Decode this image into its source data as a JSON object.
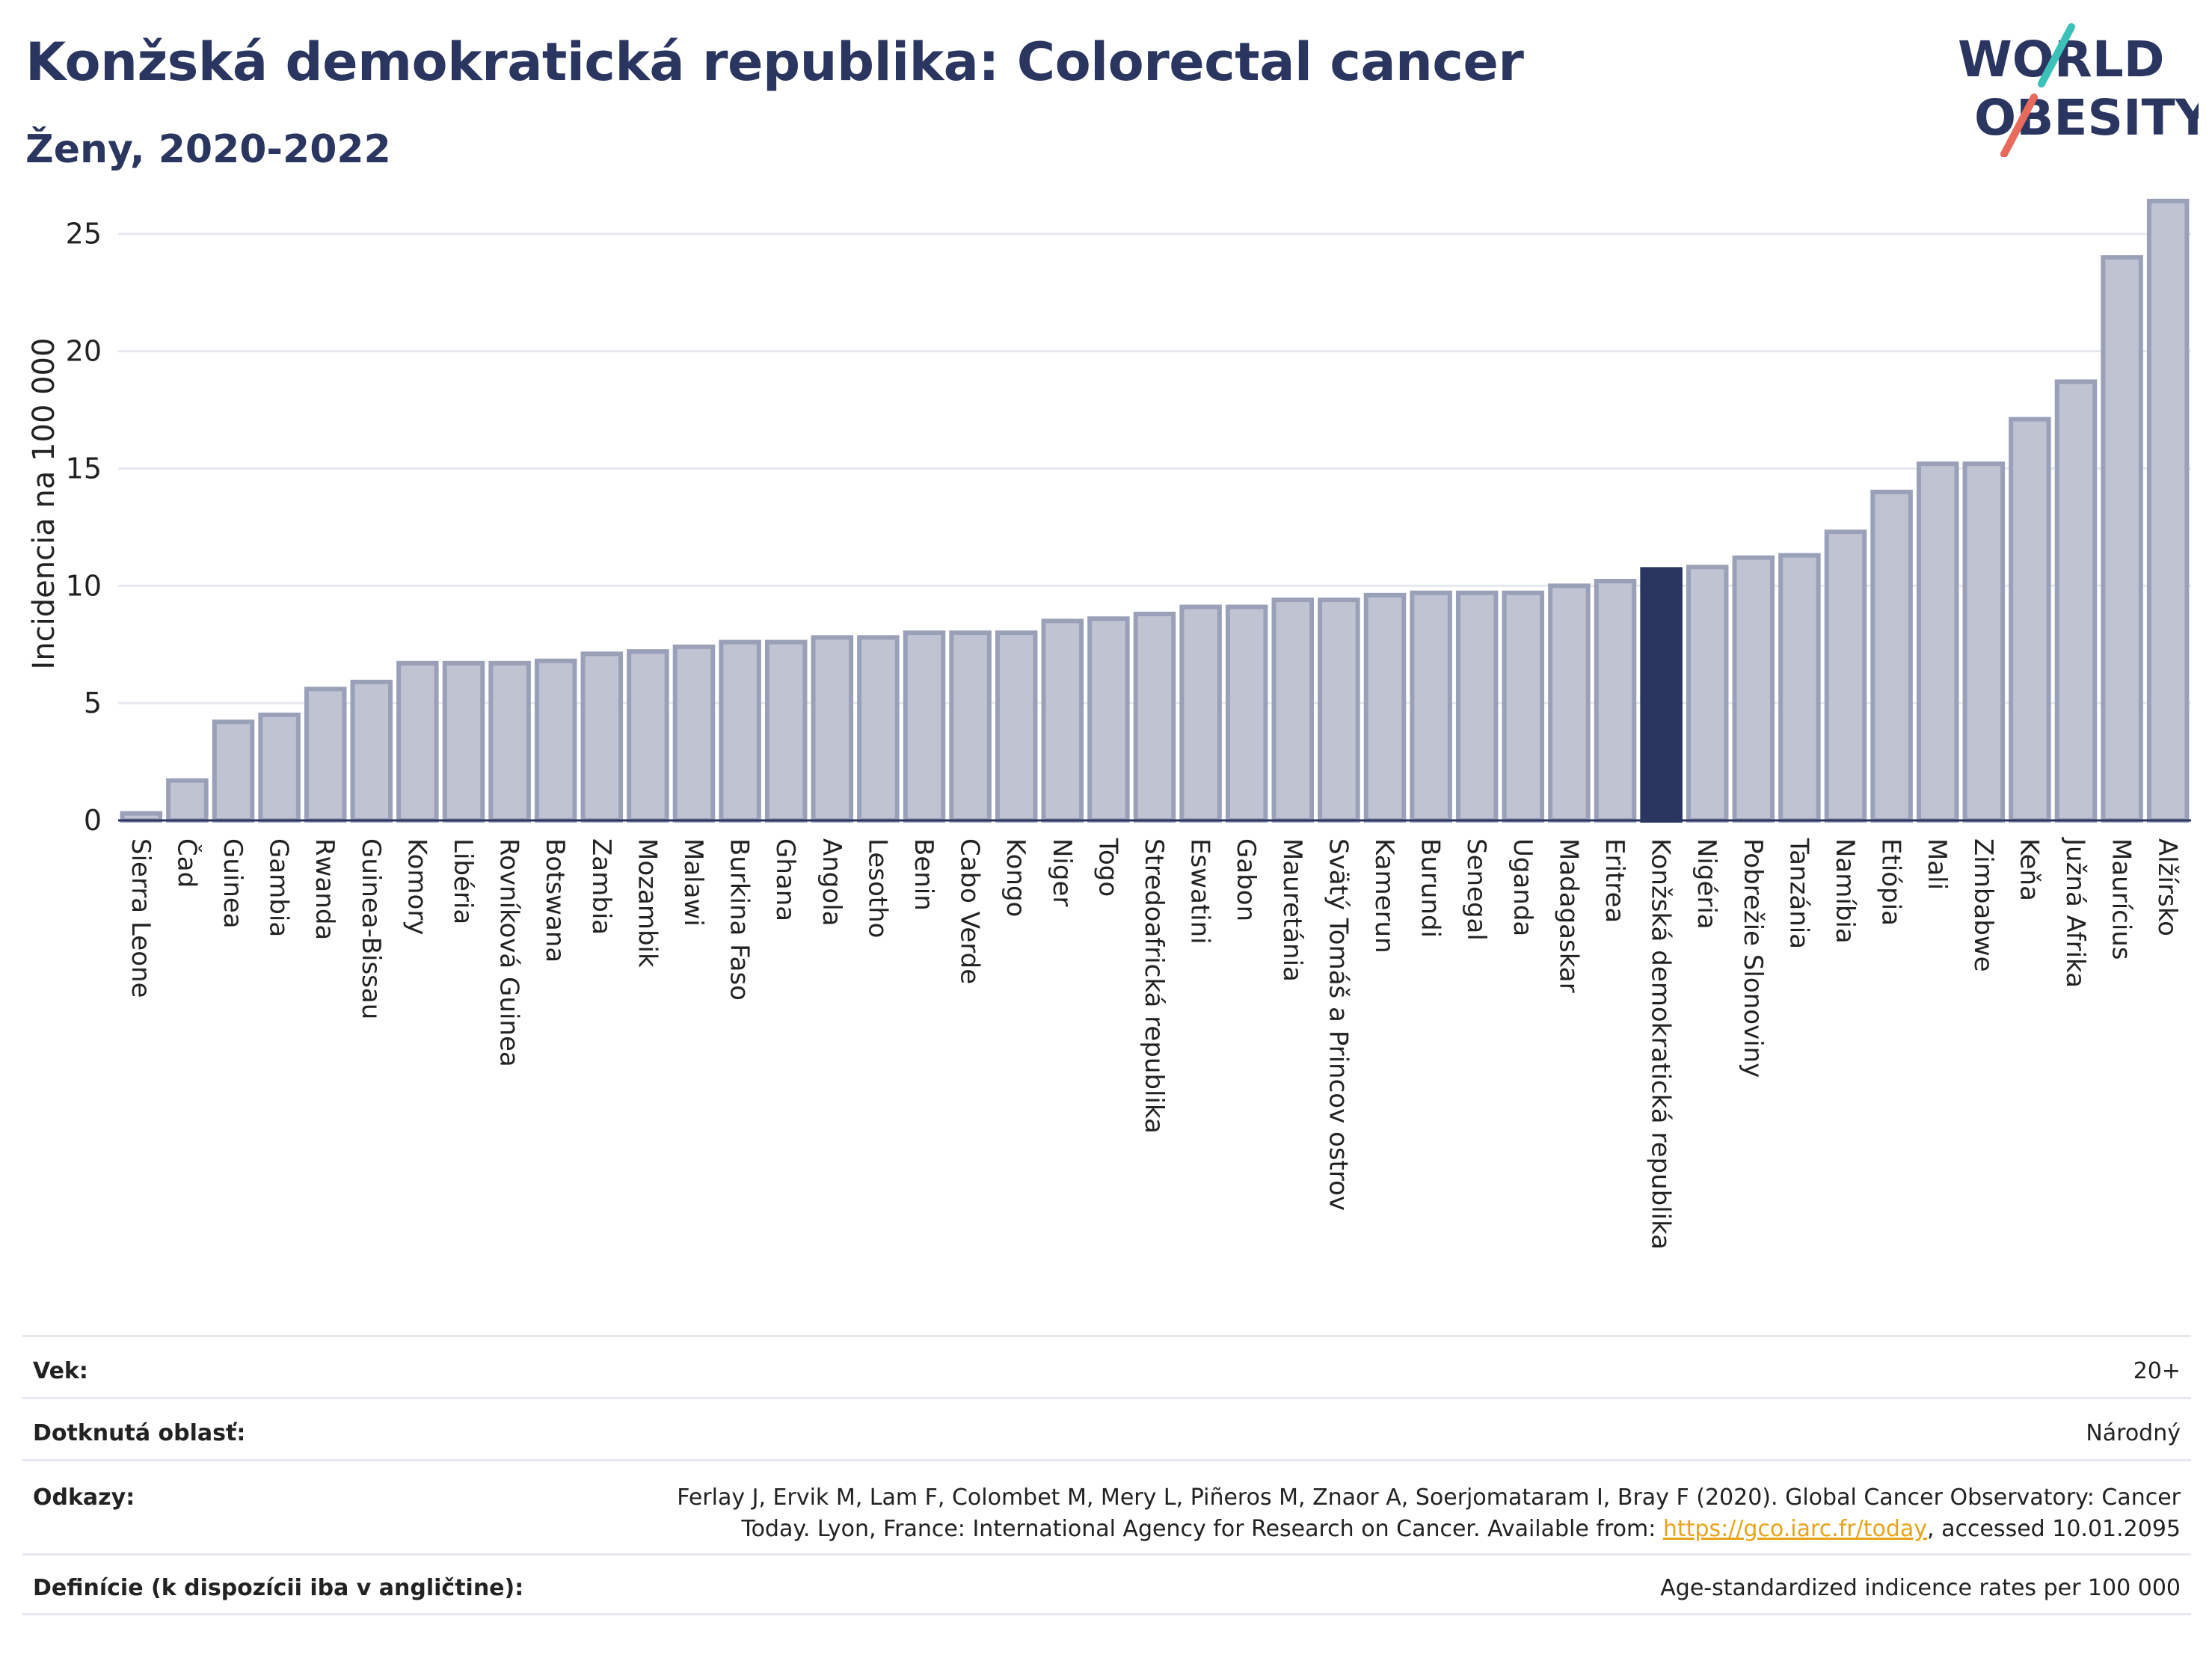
{
  "header": {
    "title": "Konžská demokratická republika: Colorectal cancer",
    "subtitle": "Ženy, 2020-2022"
  },
  "logo": {
    "line1": "WORLD",
    "line2": "OBESITY",
    "accent_colors": [
      "#3cc1b8",
      "#e86a5c"
    ]
  },
  "chart_data": {
    "type": "bar",
    "ylabel": "Incidencia na 100 000",
    "ylim": [
      0,
      27
    ],
    "yticks": [
      0,
      5,
      10,
      15,
      20,
      25
    ],
    "grid": true,
    "highlight_category": "Konžská demokratická republika",
    "colors": {
      "bar": "#bfc3d2",
      "bar_border": "#9aa0b8",
      "highlight": "#2a3560",
      "grid": "#e6e8ef"
    },
    "categories": [
      "Sierra Leone",
      "Čad",
      "Guinea",
      "Gambia",
      "Rwanda",
      "Guinea-Bissau",
      "Komory",
      "Libéria",
      "Rovníková Guinea",
      "Botswana",
      "Zambia",
      "Mozambik",
      "Malawi",
      "Burkina Faso",
      "Ghana",
      "Angola",
      "Lesotho",
      "Benin",
      "Cabo Verde",
      "Kongo",
      "Niger",
      "Togo",
      "Stredoafrická republika",
      "Eswatini",
      "Gabon",
      "Mauretánia",
      "Svätý Tomáš a Princov ostrov",
      "Kamerun",
      "Burundi",
      "Senegal",
      "Uganda",
      "Madagaskar",
      "Eritrea",
      "Konžská demokratická republika",
      "Nigéria",
      "Pobrežie Slonoviny",
      "Tanzánia",
      "Namíbia",
      "Etiópia",
      "Mali",
      "Zimbabwe",
      "Keňa",
      "Južná Afrika",
      "Maurícius",
      "Alžírsko"
    ],
    "values": [
      0.3,
      1.7,
      4.2,
      4.5,
      5.6,
      5.9,
      6.7,
      6.7,
      6.7,
      6.8,
      7.1,
      7.2,
      7.4,
      7.6,
      7.6,
      7.8,
      7.8,
      8.0,
      8.0,
      8.0,
      8.5,
      8.6,
      8.8,
      9.1,
      9.1,
      9.4,
      9.4,
      9.6,
      9.7,
      9.7,
      9.7,
      10.0,
      10.2,
      10.7,
      10.8,
      11.2,
      11.3,
      12.3,
      14.0,
      15.2,
      15.2,
      17.1,
      18.7,
      24.0,
      26.4
    ]
  },
  "footer": {
    "rows": [
      {
        "label": "Vek:",
        "value": "20+"
      },
      {
        "label": "Dotknutá oblasť:",
        "value": "Národný"
      },
      {
        "label": "Odkazy:",
        "value_line1": "Ferlay J, Ervik M, Lam F, Colombet M, Mery L, Piñeros M, Znaor A, Soerjomataram I, Bray F (2020). Global Cancer Observatory: Cancer",
        "value_line2_pre": "Today. Lyon, France: International Agency for Research on Cancer. Available from: ",
        "link": "https://gco.iarc.fr/today",
        "value_line2_post": ", accessed 10.01.2095"
      },
      {
        "label": "Definície (k dispozícii iba v angličtine):",
        "value": "Age-standardized indicence rates per 100 000"
      }
    ]
  }
}
